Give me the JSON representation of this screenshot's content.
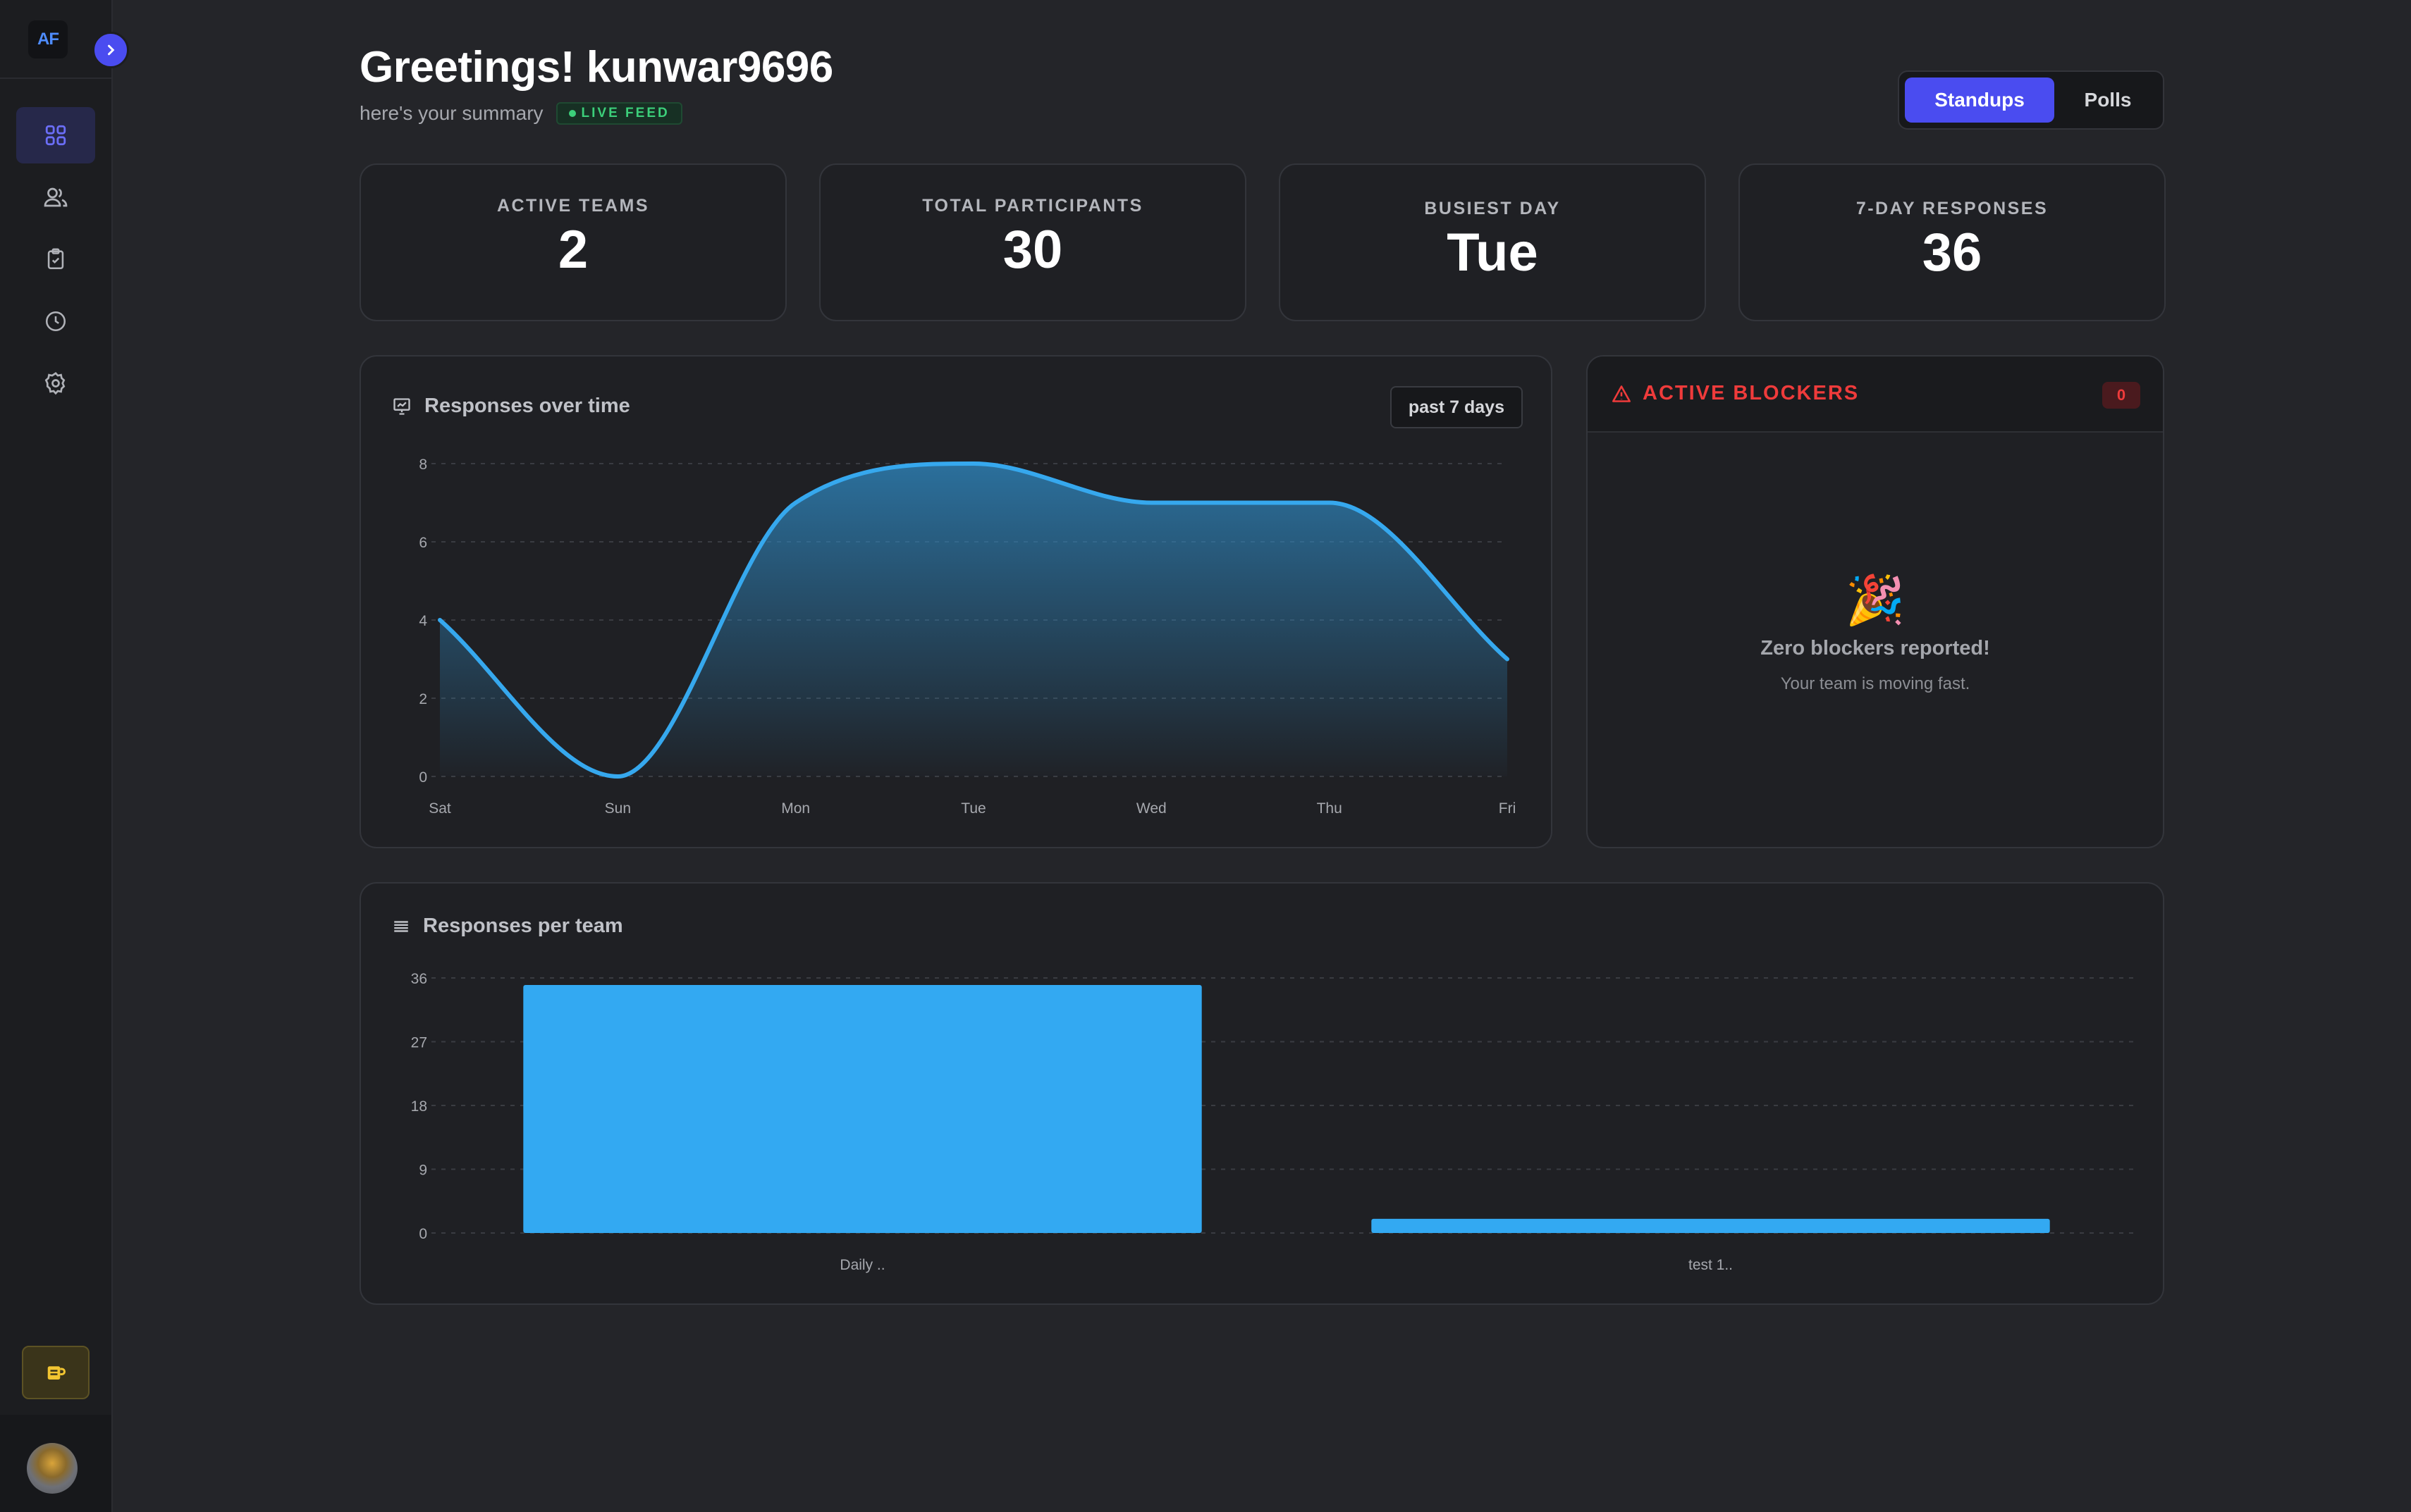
{
  "sidebar": {
    "logo": "AF",
    "items": [
      {
        "name": "dashboard",
        "icon": "grid-icon"
      },
      {
        "name": "teams",
        "icon": "users-icon"
      },
      {
        "name": "standups",
        "icon": "clipboard-check-icon"
      },
      {
        "name": "history",
        "icon": "clock-icon"
      },
      {
        "name": "settings",
        "icon": "gear-icon"
      }
    ],
    "support_icon": "coffee-icon"
  },
  "header": {
    "greeting": "Greetings! kunwar9696",
    "subtitle": "here's your summary",
    "live_badge": "LIVE FEED",
    "toggle": {
      "standups": "Standups",
      "polls": "Polls",
      "selected": "Standups"
    }
  },
  "stats": [
    {
      "label": "ACTIVE TEAMS",
      "value": "2"
    },
    {
      "label": "TOTAL PARTICIPANTS",
      "value": "30"
    },
    {
      "label": "BUSIEST DAY",
      "value": "Tue"
    },
    {
      "label": "7-DAY RESPONSES",
      "value": "36"
    }
  ],
  "responses_chart": {
    "title": "Responses over time",
    "range": "past 7 days"
  },
  "blockers": {
    "title": "ACTIVE BLOCKERS",
    "count": "0",
    "empty_emoji": "🎉",
    "empty_title": "Zero blockers reported!",
    "empty_sub": "Your team is moving fast."
  },
  "team_chart": {
    "title": "Responses per team"
  },
  "colors": {
    "accent": "#4a4cf0",
    "line": "#36a8ee",
    "bar": "#33a9f2",
    "danger": "#ef3b3b",
    "live": "#3ccf7a"
  },
  "chart_data": [
    {
      "type": "area",
      "title": "Responses over time",
      "x": [
        "Sat",
        "Sun",
        "Mon",
        "Tue",
        "Wed",
        "Thu",
        "Fri"
      ],
      "series": [
        {
          "values": [
            4,
            0,
            7,
            8,
            7,
            7,
            3
          ]
        }
      ],
      "yticks": [
        0,
        2,
        4,
        6,
        8
      ],
      "ylim": [
        0,
        8
      ],
      "grid": true
    },
    {
      "type": "bar",
      "title": "Responses per team",
      "categories": [
        "Daily ..",
        "test 1.."
      ],
      "values": [
        35,
        2
      ],
      "yticks": [
        0,
        9,
        18,
        27,
        36
      ],
      "ylim": [
        0,
        36
      ],
      "grid": true
    }
  ]
}
